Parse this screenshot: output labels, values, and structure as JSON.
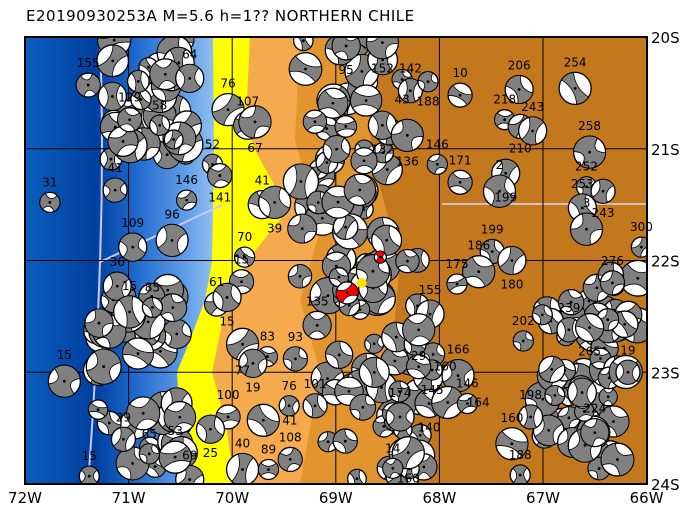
{
  "title": "E20190930253A  M=5.6  h=1??  NORTHERN CHILE",
  "map": {
    "lon_range": [
      -72,
      -66
    ],
    "lat_range": [
      -24,
      -20
    ],
    "x_ticks": [
      "72W",
      "71W",
      "70W",
      "69W",
      "68W",
      "67W",
      "66W"
    ],
    "y_ticks": [
      "20S",
      "21S",
      "22S",
      "23S",
      "24S"
    ],
    "colors": {
      "ocean_deep": "#003f9e",
      "ocean_mid": "#1f68cc",
      "ocean_shallow": "#a4ccf4",
      "coast_lowland": "#ffff00",
      "land_low": "#f6aa4e",
      "land_mid": "#e2952f",
      "land_high": "#c4781e",
      "plate_boundary": "#c8c8ff",
      "mechanism_compression": "#808080",
      "main_event": "#ff0000",
      "epicenter_marker": "#ffdd00"
    }
  },
  "main_event": {
    "lon": -68.89,
    "lat": -22.29
  },
  "epicenter": {
    "lon": -68.75,
    "lat": -22.2
  },
  "secondary_event": {
    "lon": -68.57,
    "lat": -21.97
  },
  "events": [
    {
      "lon": -71.76,
      "lat": -21.48,
      "label": "31"
    },
    {
      "lon": -71.13,
      "lat": -21.37,
      "label": "41"
    },
    {
      "lon": -70.96,
      "lat": -21.88,
      "label": "109"
    },
    {
      "lon": -70.58,
      "lat": -21.82,
      "label": "96"
    },
    {
      "lon": -70.44,
      "lat": -21.46,
      "label": "146"
    },
    {
      "lon": -71.39,
      "lat": -20.43,
      "label": "155"
    },
    {
      "lon": -70.41,
      "lat": -20.37,
      "label": "64"
    },
    {
      "lon": -70.04,
      "lat": -20.65,
      "label": "76"
    },
    {
      "lon": -70.7,
      "lat": -20.79,
      "label": "58"
    },
    {
      "lon": -70.99,
      "lat": -20.74,
      "label": "129"
    },
    {
      "lon": -69.85,
      "lat": -20.79,
      "label": "107"
    },
    {
      "lon": -69.78,
      "lat": -20.76,
      "label": "67"
    },
    {
      "lon": -70.19,
      "lat": -21.14,
      "label": "52"
    },
    {
      "lon": -70.12,
      "lat": -21.24,
      "label": "141"
    },
    {
      "lon": -69.71,
      "lat": -21.5,
      "label": "41"
    },
    {
      "lon": -69.59,
      "lat": -21.48,
      "label": "39"
    },
    {
      "lon": -69.88,
      "lat": -21.97,
      "label": "70"
    },
    {
      "lon": -69.91,
      "lat": -22.19,
      "label": "15"
    },
    {
      "lon": -71.11,
      "lat": -22.23,
      "label": "36"
    },
    {
      "lon": -70.99,
      "lat": -22.46,
      "label": "15"
    },
    {
      "lon": -70.77,
      "lat": -22.42,
      "label": "85"
    },
    {
      "lon": -70.15,
      "lat": -22.39,
      "label": "61"
    },
    {
      "lon": -70.05,
      "lat": -22.33,
      "label": "15"
    },
    {
      "lon": -69.9,
      "lat": -22.75,
      "label": "77"
    },
    {
      "lon": -69.66,
      "lat": -22.86,
      "label": "83"
    },
    {
      "lon": -69.39,
      "lat": -22.88,
      "label": "93"
    },
    {
      "lon": -69.8,
      "lat": -22.92,
      "label": "19"
    },
    {
      "lon": -71.62,
      "lat": -23.08,
      "label": "15"
    },
    {
      "lon": -71.38,
      "lat": -23.93,
      "label": "15"
    },
    {
      "lon": -70.04,
      "lat": -23.4,
      "label": "100"
    },
    {
      "lon": -70.21,
      "lat": -23.51,
      "label": "25"
    },
    {
      "lon": -69.9,
      "lat": -23.87,
      "label": "40"
    },
    {
      "lon": -69.65,
      "lat": -23.87,
      "label": "89"
    },
    {
      "lon": -69.44,
      "lat": -23.78,
      "label": "108"
    },
    {
      "lon": -70.41,
      "lat": -23.96,
      "label": "69"
    },
    {
      "lon": -70.55,
      "lat": -23.76,
      "label": "53"
    },
    {
      "lon": -70.8,
      "lat": -23.73,
      "label": "65"
    },
    {
      "lon": -71.05,
      "lat": -23.6,
      "label": "29"
    },
    {
      "lon": -69.18,
      "lat": -22.58,
      "label": "135"
    },
    {
      "lon": -69.7,
      "lat": -23.43,
      "label": "41"
    },
    {
      "lon": -69.45,
      "lat": -23.3,
      "label": "76"
    },
    {
      "lon": -69.2,
      "lat": -23.3,
      "label": "101"
    },
    {
      "lon": -68.9,
      "lat": -20.08,
      "label": "95"
    },
    {
      "lon": -68.55,
      "lat": -20.05,
      "label": "152"
    },
    {
      "lon": -68.36,
      "lat": -20.38,
      "label": "43"
    },
    {
      "lon": -68.28,
      "lat": -20.48,
      "label": "142"
    },
    {
      "lon": -68.55,
      "lat": -20.79,
      "label": "132"
    },
    {
      "lon": -68.31,
      "lat": -20.88,
      "label": "136"
    },
    {
      "lon": -68.11,
      "lat": -20.4,
      "label": "188"
    },
    {
      "lon": -67.8,
      "lat": -20.52,
      "label": "10"
    },
    {
      "lon": -67.23,
      "lat": -20.47,
      "label": "206"
    },
    {
      "lon": -66.69,
      "lat": -20.46,
      "label": "254"
    },
    {
      "lon": -67.37,
      "lat": -20.74,
      "label": "218"
    },
    {
      "lon": -67.22,
      "lat": -20.8,
      "label": "210"
    },
    {
      "lon": -67.1,
      "lat": -20.84,
      "label": "243"
    },
    {
      "lon": -66.55,
      "lat": -21.03,
      "label": "258"
    },
    {
      "lon": -68.02,
      "lat": -21.14,
      "label": "146"
    },
    {
      "lon": -67.8,
      "lat": -21.3,
      "label": "171"
    },
    {
      "lon": -67.36,
      "lat": -21.22,
      "label": "199"
    },
    {
      "lon": -67.42,
      "lat": -21.38,
      "label": "2"
    },
    {
      "lon": -66.58,
      "lat": -21.34,
      "label": "252"
    },
    {
      "lon": -66.42,
      "lat": -21.38,
      "label": "243"
    },
    {
      "lon": -66.62,
      "lat": -21.53,
      "label": "253"
    },
    {
      "lon": -66.58,
      "lat": -21.72,
      "label": "3"
    },
    {
      "lon": -66.05,
      "lat": -21.88,
      "label": "300"
    },
    {
      "lon": -67.49,
      "lat": -21.92,
      "label": "199"
    },
    {
      "lon": -67.3,
      "lat": -22.0,
      "label": "180"
    },
    {
      "lon": -67.62,
      "lat": -22.1,
      "label": "186"
    },
    {
      "lon": -67.83,
      "lat": -22.21,
      "label": "175"
    },
    {
      "lon": -66.33,
      "lat": -22.2,
      "label": "276"
    },
    {
      "lon": -68.09,
      "lat": -22.48,
      "label": "155"
    },
    {
      "lon": -68.2,
      "lat": -22.62,
      "label": "29"
    },
    {
      "lon": -67.19,
      "lat": -22.72,
      "label": "202"
    },
    {
      "lon": -66.75,
      "lat": -22.62,
      "label": "239"
    },
    {
      "lon": -66.55,
      "lat": -22.6,
      "label": "265"
    },
    {
      "lon": -67.82,
      "lat": -23.03,
      "label": "166"
    },
    {
      "lon": -68.07,
      "lat": -22.98,
      "label": "145"
    },
    {
      "lon": -68.2,
      "lat": -22.95,
      "label": "160"
    },
    {
      "lon": -68.1,
      "lat": -23.28,
      "label": "140"
    },
    {
      "lon": -67.92,
      "lat": -23.27,
      "label": "164"
    },
    {
      "lon": -67.73,
      "lat": -23.28,
      "label": "146"
    },
    {
      "lon": -67.12,
      "lat": -23.4,
      "label": "198"
    },
    {
      "lon": -66.5,
      "lat": -23.54,
      "label": "224"
    },
    {
      "lon": -67.3,
      "lat": -23.64,
      "label": "160"
    },
    {
      "lon": -67.22,
      "lat": -23.92,
      "label": "188"
    },
    {
      "lon": -66.18,
      "lat": -23.0,
      "label": "19"
    },
    {
      "lon": -68.38,
      "lat": -23.4,
      "label": "174"
    },
    {
      "lon": -68.3,
      "lat": -23.72,
      "label": "160"
    },
    {
      "lon": -68.45,
      "lat": -23.86,
      "label": "14"
    }
  ]
}
